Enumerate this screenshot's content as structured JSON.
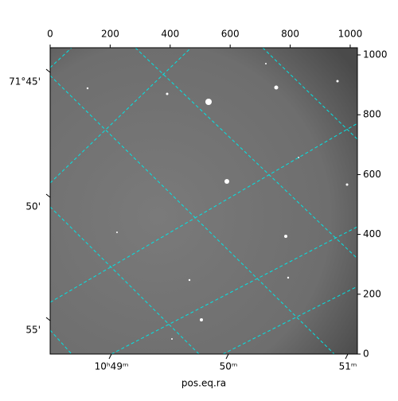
{
  "chart_data": {
    "type": "image",
    "xlabel": "pos.eq.ra",
    "xlim": [
      0,
      1024
    ],
    "ylim": [
      0,
      1024
    ],
    "xticks": [
      0,
      200,
      400,
      600,
      800,
      1000
    ],
    "yticks": [
      0,
      200,
      400,
      600,
      800,
      1000
    ],
    "ra_labels": [
      "10ʰ49ᵐ",
      "50ᵐ",
      "51ᵐ"
    ],
    "dec_labels": [
      "71°45'",
      "50'",
      "55'"
    ],
    "grid_color": "#00e5e5"
  }
}
